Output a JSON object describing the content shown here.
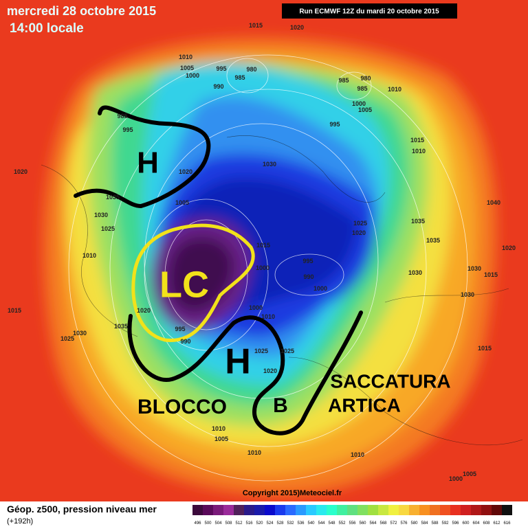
{
  "header": {
    "title": "mercredi 28 octobre 2015",
    "time": "14:00 locale",
    "run": "Run ECMWF 12Z du mardi 20 octobre 2015"
  },
  "labels": {
    "high_west": "H",
    "high_east": "H",
    "cutoff": "LC",
    "low": "B",
    "block": "BLOCCO",
    "trough_1": "SACCATURA",
    "trough_2": "ARTICA"
  },
  "isobars": [
    "1015",
    "1020",
    "1010",
    "1005",
    "1000",
    "995",
    "980",
    "985",
    "990",
    "980",
    "985",
    "985",
    "1010",
    "1000",
    "1005",
    "995",
    "985",
    "995",
    "1015",
    "1010",
    "1020",
    "1030",
    "1020",
    "1035",
    "1005",
    "1030",
    "1025",
    "1025",
    "1020",
    "1035",
    "1040",
    "1035",
    "1020",
    "1010",
    "1015",
    "1000",
    "995",
    "990",
    "1000",
    "1030",
    "1030",
    "1015",
    "1030",
    "1015",
    "1020",
    "1000",
    "1010",
    "1035",
    "995",
    "990",
    "1030",
    "1025",
    "1025",
    "1025",
    "1020",
    "1015",
    "1010",
    "1005",
    "1010",
    "1010",
    "1005",
    "1000"
  ],
  "footer": {
    "caption": "Géop. z500, pression niveau mer",
    "lead": "(+192h)",
    "copyright": "Copyright 2015)Meteociel.fr"
  },
  "legend": {
    "values": [
      496,
      500,
      504,
      508,
      512,
      516,
      520,
      524,
      528,
      532,
      536,
      540,
      544,
      548,
      552,
      556,
      560,
      564,
      568,
      572,
      576,
      580,
      584,
      588,
      592,
      596,
      600,
      604,
      608,
      612,
      616
    ],
    "colors": [
      "#3c0a3c",
      "#5a0a5a",
      "#7a1a7a",
      "#9a2a9a",
      "#50205a",
      "#2a1a8a",
      "#1a1aaa",
      "#0a0acc",
      "#1a3aee",
      "#2a6aff",
      "#2a9aff",
      "#2acaff",
      "#2aeaee",
      "#2affcc",
      "#40f0a0",
      "#60e080",
      "#80e060",
      "#a0e040",
      "#c8e840",
      "#f0f040",
      "#f8d840",
      "#f8b030",
      "#f89020",
      "#f07020",
      "#f05020",
      "#e83020",
      "#d02020",
      "#b01818",
      "#901010",
      "#600808",
      "#101010"
    ]
  }
}
